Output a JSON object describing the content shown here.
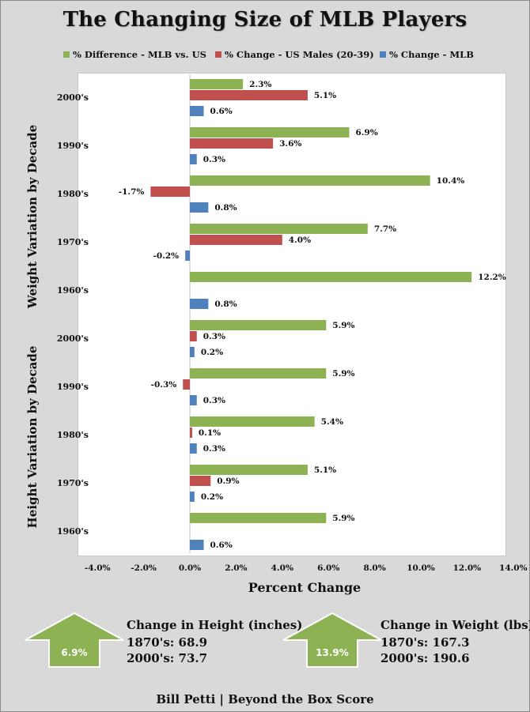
{
  "title": "The Changing Size of MLB Players",
  "legend": [
    {
      "label": "% Difference - MLB vs. US",
      "color": "#8db254"
    },
    {
      "label": "% Change - US Males (20-39)",
      "color": "#c0504d"
    },
    {
      "label": "% Change - MLB",
      "color": "#4f81bd"
    }
  ],
  "group_labels": {
    "weight": "Weight Variation  by Decade",
    "height": "Height Variation  by Decade"
  },
  "chart_data": {
    "type": "bar",
    "orientation": "horizontal",
    "xlabel": "Percent Change",
    "xlim": [
      -4.0,
      14.0
    ],
    "xticks": [
      "-4.0%",
      "-2.0%",
      "0.0%",
      "2.0%",
      "4.0%",
      "6.0%",
      "8.0%",
      "10.0%",
      "12.0%",
      "14.0%"
    ],
    "grid": false,
    "legend_position": "top",
    "categories": [
      "2000's",
      "1990's",
      "1980's",
      "1970's",
      "1960's",
      "2000's",
      "1990's",
      "1980's",
      "1970's",
      "1960's"
    ],
    "groups": [
      {
        "name": "Weight Variation  by Decade",
        "categories": [
          "2000's",
          "1990's",
          "1980's",
          "1970's",
          "1960's"
        ]
      },
      {
        "name": "Height Variation  by Decade",
        "categories": [
          "2000's",
          "1990's",
          "1980's",
          "1970's",
          "1960's"
        ]
      }
    ],
    "series": [
      {
        "name": "% Difference - MLB vs. US",
        "color": "#8db254",
        "values": [
          2.3,
          6.9,
          10.4,
          7.7,
          12.2,
          5.9,
          5.9,
          5.4,
          5.1,
          5.9
        ],
        "labels": [
          "2.3%",
          "6.9%",
          "10.4%",
          "7.7%",
          "12.2%",
          "5.9%",
          "5.9%",
          "5.4%",
          "5.1%",
          "5.9%"
        ]
      },
      {
        "name": "% Change - US Males (20-39)",
        "color": "#c0504d",
        "values": [
          5.1,
          3.6,
          -1.7,
          4.0,
          null,
          0.3,
          -0.3,
          0.1,
          0.9,
          null
        ],
        "labels": [
          "5.1%",
          "3.6%",
          "-1.7%",
          "4.0%",
          "",
          "0.3%",
          "-0.3%",
          "0.1%",
          "0.9%",
          ""
        ]
      },
      {
        "name": "% Change - MLB",
        "color": "#4f81bd",
        "values": [
          0.6,
          0.3,
          0.8,
          -0.2,
          0.8,
          0.2,
          0.3,
          0.3,
          0.2,
          0.6
        ],
        "labels": [
          "0.6%",
          "0.3%",
          "0.8%",
          "-0.2%",
          "0.8%",
          "0.2%",
          "0.3%",
          "0.3%",
          "0.2%",
          "0.6%"
        ]
      }
    ]
  },
  "height_box": {
    "arrow_value": "6.9%",
    "title": "Change in Height (inches)",
    "line1": "1870's: 68.9",
    "line2": "2000's: 73.7"
  },
  "weight_box": {
    "arrow_value": "13.9%",
    "title": "Change in Weight (lbs)",
    "line1": "1870's: 167.3",
    "line2": "2000's: 190.6"
  },
  "credit": "Bill Petti  |  Beyond the Box Score"
}
